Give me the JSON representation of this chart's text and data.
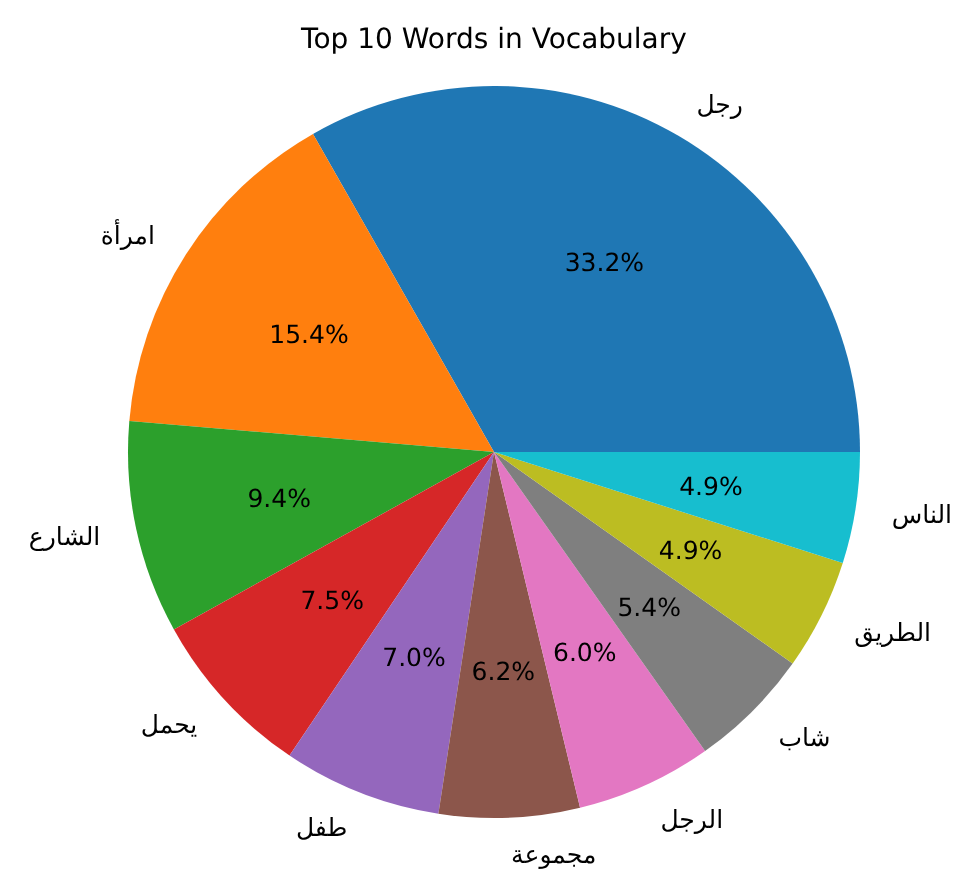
{
  "chart_data": {
    "type": "pie",
    "title": "Top 10 Words in Vocabulary",
    "categories": [
      "رجل",
      "امرأة",
      "الشارع",
      "يحمل",
      "طفل",
      "مجموعة",
      "الرجل",
      "شاب",
      "الطريق",
      "الناس"
    ],
    "values": [
      33.2,
      15.4,
      9.4,
      7.5,
      7.0,
      6.2,
      6.0,
      5.4,
      4.9,
      4.9
    ],
    "value_labels": [
      "33.2%",
      "15.4%",
      "9.4%",
      "7.5%",
      "7.0%",
      "6.2%",
      "6.0%",
      "5.4%",
      "4.9%",
      "4.9%"
    ],
    "colors": [
      "#1f77b4",
      "#ff7f0e",
      "#2ca02c",
      "#d62728",
      "#9467bd",
      "#8c564b",
      "#e377c2",
      "#7f7f7f",
      "#bcbd22",
      "#17becf"
    ]
  }
}
